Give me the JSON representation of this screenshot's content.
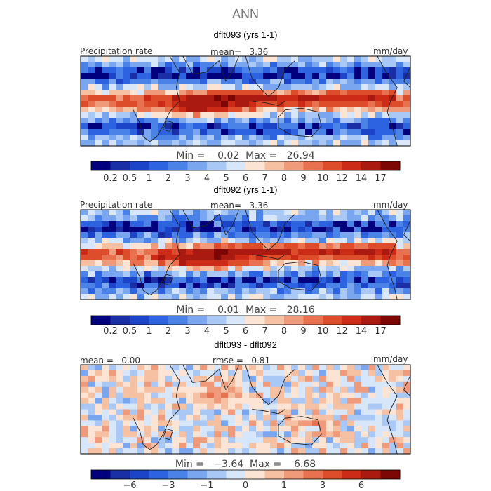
{
  "chart_data": {
    "type": "heatmap",
    "title": "ANN",
    "panels": [
      {
        "title": "dflt093 (yrs 1-1)",
        "left_label": "Precipitation rate",
        "center_label": "mean=   3.36",
        "right_label": "mm/day",
        "min_max": "Min =    0.02  Max =   26.94",
        "colorbar": {
          "colors": [
            "#00007f",
            "#1a2fa5",
            "#1c44c8",
            "#2d63e0",
            "#4a82e8",
            "#7aa6f0",
            "#a9c8f5",
            "#d8e6fa",
            "#fbe4d3",
            "#f6c0a2",
            "#ef9a7a",
            "#e8724f",
            "#de4d2b",
            "#cc2b17",
            "#aa1a10",
            "#7c0704"
          ],
          "tick_labels": [
            "0.2",
            "0.5",
            "1",
            "2",
            "3",
            "4",
            "5",
            "6",
            "7",
            "8",
            "9",
            "10",
            "12",
            "14",
            "17"
          ]
        }
      },
      {
        "title": "dflt092 (yrs 1-1)",
        "left_label": "Precipitation rate",
        "center_label": "mean=   3.36",
        "right_label": "mm/day",
        "min_max": "Min =    0.01  Max =   28.16",
        "colorbar": {
          "colors": [
            "#00007f",
            "#1a2fa5",
            "#1c44c8",
            "#2d63e0",
            "#4a82e8",
            "#7aa6f0",
            "#a9c8f5",
            "#d8e6fa",
            "#fbe4d3",
            "#f6c0a2",
            "#ef9a7a",
            "#e8724f",
            "#de4d2b",
            "#cc2b17",
            "#aa1a10",
            "#7c0704"
          ],
          "tick_labels": [
            "0.2",
            "0.5",
            "1",
            "2",
            "3",
            "4",
            "5",
            "6",
            "7",
            "8",
            "9",
            "10",
            "12",
            "14",
            "17"
          ]
        }
      },
      {
        "title": "dflt093 - dflt092",
        "left_label": "mean =   0.00",
        "center_label": "rmse =   0.81",
        "right_label": "mm/day",
        "min_max": "Min =   −3.64  Max =    6.68",
        "colorbar": {
          "colors": [
            "#00007f",
            "#1a2fa5",
            "#1c44c8",
            "#2d63e0",
            "#4a82e8",
            "#7aa6f0",
            "#a9c8f5",
            "#d8e6fa",
            "#fbe4d3",
            "#f6c0a2",
            "#ef9a7a",
            "#e8724f",
            "#de4d2b",
            "#cc2b17",
            "#aa1a10",
            "#7c0704"
          ],
          "tick_labels": [
            "−6",
            "−3",
            "−1",
            "0",
            "1",
            "3",
            "6"
          ]
        }
      }
    ]
  }
}
